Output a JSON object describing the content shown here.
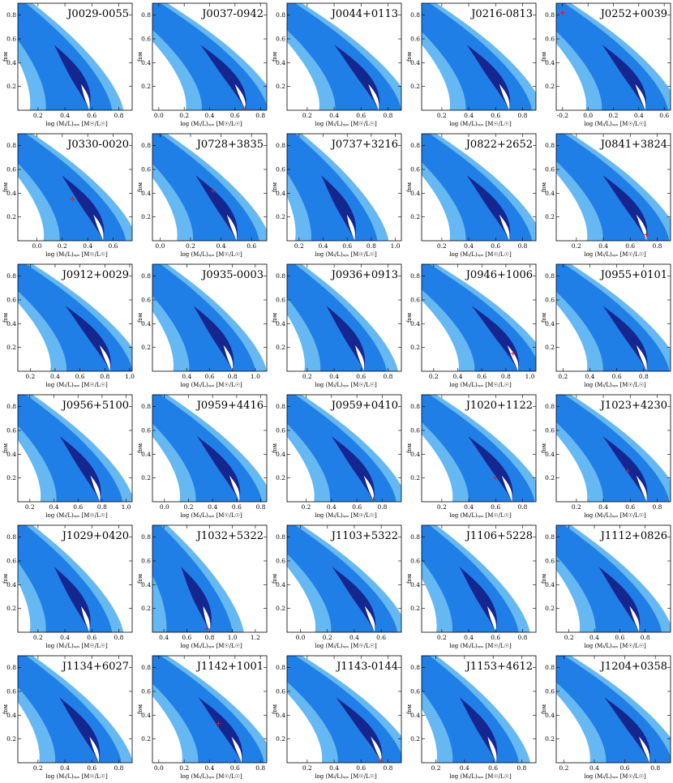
{
  "figure": {
    "xlabel": "log (Mₗ/L)ₛₚₛ  [M☉/L☉]",
    "ylabel": "fᴅᴍ",
    "colors": {
      "band_outer": "#66b8f2",
      "band_mid": "#1f7fe6",
      "band_inner": "#16268f",
      "core": "#ffffff",
      "marker": "#cc2222",
      "frame": "#000000"
    }
  },
  "chart_data": [
    {
      "title": "J0029-0055",
      "type": "contour",
      "xlim": [
        0.05,
        0.9
      ],
      "ylim": [
        0,
        0.9
      ],
      "xticks": [
        "0.2",
        "0.4",
        "0.6",
        "0.8"
      ],
      "yticks": [
        "0.2",
        "0.4",
        "0.6",
        "0.8"
      ],
      "x0": 0.58,
      "x_mark": null,
      "y_mark": null
    },
    {
      "title": "J0037-0942",
      "type": "contour",
      "xlim": [
        -0.05,
        0.85
      ],
      "ylim": [
        0,
        0.9
      ],
      "xticks": [
        "0.0",
        "0.2",
        "0.4",
        "0.6",
        "0.8"
      ],
      "yticks": [
        "0.2",
        "0.4",
        "0.6",
        "0.8"
      ],
      "x0": 0.68,
      "x_mark": 0.68,
      "y_mark": 0.02
    },
    {
      "title": "J0044+0113",
      "type": "contour",
      "xlim": [
        0.05,
        0.9
      ],
      "ylim": [
        0,
        0.9
      ],
      "xticks": [
        "0.2",
        "0.4",
        "0.6",
        "0.8"
      ],
      "yticks": [
        "0.2",
        "0.4",
        "0.6",
        "0.8"
      ],
      "x0": 0.73,
      "x_mark": null,
      "y_mark": null
    },
    {
      "title": "J0216-0813",
      "type": "contour",
      "xlim": [
        0.05,
        0.9
      ],
      "ylim": [
        0,
        0.9
      ],
      "xticks": [
        "0.2",
        "0.4",
        "0.6",
        "0.8"
      ],
      "yticks": [
        "0.2",
        "0.4",
        "0.6",
        "0.8"
      ],
      "x0": 0.7,
      "x_mark": null,
      "y_mark": null
    },
    {
      "title": "J0252+0039",
      "type": "contour",
      "xlim": [
        -0.25,
        0.65
      ],
      "ylim": [
        0,
        0.9
      ],
      "xticks": [
        "-0.2",
        "0.0",
        "0.2",
        "0.4",
        "0.6"
      ],
      "yticks": [
        "0.2",
        "0.4",
        "0.6",
        "0.8"
      ],
      "x0": 0.45,
      "x_mark": -0.2,
      "y_mark": 0.82
    },
    {
      "title": "J0330-0020",
      "type": "contour",
      "xlim": [
        -0.15,
        0.75
      ],
      "ylim": [
        0,
        0.9
      ],
      "xticks": [
        "0.0",
        "0.2",
        "0.4",
        "0.6"
      ],
      "yticks": [
        "0.2",
        "0.4",
        "0.6",
        "0.8"
      ],
      "x0": 0.52,
      "x_mark": 0.28,
      "y_mark": 0.35
    },
    {
      "title": "J0728+3835",
      "type": "contour",
      "xlim": [
        -0.05,
        0.7
      ],
      "ylim": [
        0,
        0.9
      ],
      "xticks": [
        "0.0",
        "0.2",
        "0.4",
        "0.6"
      ],
      "yticks": [
        "0.2",
        "0.4",
        "0.6",
        "0.8"
      ],
      "x0": 0.5,
      "x_mark": 0.35,
      "y_mark": 0.42
    },
    {
      "title": "J0737+3216",
      "type": "contour",
      "xlim": [
        0.1,
        1.05
      ],
      "ylim": [
        0,
        0.9
      ],
      "xticks": [
        "0.2",
        "0.4",
        "0.6",
        "0.8",
        "1.0"
      ],
      "yticks": [
        "0.2",
        "0.4",
        "0.6",
        "0.8"
      ],
      "x0": 0.66,
      "x_mark": null,
      "y_mark": null
    },
    {
      "title": "J0822+2652",
      "type": "contour",
      "xlim": [
        0.05,
        0.9
      ],
      "ylim": [
        0,
        0.9
      ],
      "xticks": [
        "0.2",
        "0.4",
        "0.6",
        "0.8"
      ],
      "yticks": [
        "0.2",
        "0.4",
        "0.6",
        "0.8"
      ],
      "x0": 0.7,
      "x_mark": null,
      "y_mark": null
    },
    {
      "title": "J0841+3824",
      "type": "contour",
      "xlim": [
        0.05,
        0.9
      ],
      "ylim": [
        0,
        0.9
      ],
      "xticks": [
        "0.2",
        "0.4",
        "0.6",
        "0.8"
      ],
      "yticks": [
        "0.2",
        "0.4",
        "0.6",
        "0.8"
      ],
      "x0": 0.72,
      "x_mark": 0.72,
      "y_mark": 0.05
    },
    {
      "title": "J0912+0029",
      "type": "contour",
      "xlim": [
        0.1,
        1.02
      ],
      "ylim": [
        0,
        0.9
      ],
      "xticks": [
        "0.2",
        "0.4",
        "0.6",
        "0.8",
        "1.0"
      ],
      "yticks": [
        "0.2",
        "0.4",
        "0.6",
        "0.8"
      ],
      "x0": 0.84,
      "x_mark": null,
      "y_mark": null
    },
    {
      "title": "J0935-0003",
      "type": "contour",
      "xlim": [
        0.1,
        1.1
      ],
      "ylim": [
        0,
        0.9
      ],
      "xticks": [
        "0.4",
        "0.6",
        "0.8",
        "1.0"
      ],
      "yticks": [
        "0.2",
        "0.4",
        "0.6",
        "0.8"
      ],
      "x0": 0.8,
      "x_mark": null,
      "y_mark": null
    },
    {
      "title": "J0936+0913",
      "type": "contour",
      "xlim": [
        0.05,
        0.9
      ],
      "ylim": [
        0,
        0.9
      ],
      "xticks": [
        "0.2",
        "0.4",
        "0.6",
        "0.8"
      ],
      "yticks": [
        "0.2",
        "0.4",
        "0.6",
        "0.8"
      ],
      "x0": 0.62,
      "x_mark": null,
      "y_mark": null
    },
    {
      "title": "J0946+1006",
      "type": "contour",
      "xlim": [
        0.1,
        1.05
      ],
      "ylim": [
        0,
        0.9
      ],
      "xticks": [
        "0.2",
        "0.4",
        "0.6",
        "0.8",
        "1.0"
      ],
      "yticks": [
        "0.2",
        "0.4",
        "0.6",
        "0.8"
      ],
      "x0": 0.9,
      "x_mark": 0.86,
      "y_mark": 0.15
    },
    {
      "title": "J0955+0101",
      "type": "contour",
      "xlim": [
        0.15,
        1.0
      ],
      "ylim": [
        0,
        0.9
      ],
      "xticks": [
        "0.2",
        "0.4",
        "0.6",
        "0.8"
      ],
      "yticks": [
        "0.2",
        "0.4",
        "0.6",
        "0.8"
      ],
      "x0": 0.82,
      "x_mark": null,
      "y_mark": null
    },
    {
      "title": "J0956+5100",
      "type": "contour",
      "xlim": [
        0.1,
        1.05
      ],
      "ylim": [
        0,
        0.9
      ],
      "xticks": [
        "0.2",
        "0.4",
        "0.6",
        "0.8",
        "1.0"
      ],
      "yticks": [
        "0.2",
        "0.4",
        "0.6",
        "0.8"
      ],
      "x0": 0.78,
      "x_mark": null,
      "y_mark": null
    },
    {
      "title": "J0959+4416",
      "type": "contour",
      "xlim": [
        -0.1,
        0.85
      ],
      "ylim": [
        0,
        0.9
      ],
      "xticks": [
        "0.0",
        "0.2",
        "0.4",
        "0.6",
        "0.8"
      ],
      "yticks": [
        "0.2",
        "0.4",
        "0.6",
        "0.8"
      ],
      "x0": 0.62,
      "x_mark": null,
      "y_mark": null
    },
    {
      "title": "J0959+0410",
      "type": "contour",
      "xlim": [
        0.05,
        0.95
      ],
      "ylim": [
        0,
        0.9
      ],
      "xticks": [
        "0.2",
        "0.4",
        "0.6",
        "0.8"
      ],
      "yticks": [
        "0.2",
        "0.4",
        "0.6",
        "0.8"
      ],
      "x0": 0.73,
      "x_mark": 0.73,
      "y_mark": 0.02
    },
    {
      "title": "J1020+1122",
      "type": "contour",
      "xlim": [
        0.05,
        0.9
      ],
      "ylim": [
        0,
        0.9
      ],
      "xticks": [
        "0.2",
        "0.4",
        "0.6",
        "0.8"
      ],
      "yticks": [
        "0.2",
        "0.4",
        "0.6",
        "0.8"
      ],
      "x0": 0.72,
      "x_mark": 0.6,
      "y_mark": 0.2
    },
    {
      "title": "J1023+4230",
      "type": "contour",
      "xlim": [
        0.05,
        0.9
      ],
      "ylim": [
        0,
        0.9
      ],
      "xticks": [
        "0.2",
        "0.4",
        "0.6",
        "0.8"
      ],
      "yticks": [
        "0.2",
        "0.4",
        "0.6",
        "0.8"
      ],
      "x0": 0.72,
      "x_mark": 0.58,
      "y_mark": 0.26
    },
    {
      "title": "J1029+0420",
      "type": "contour",
      "xlim": [
        0.05,
        0.9
      ],
      "ylim": [
        0,
        0.9
      ],
      "xticks": [
        "0.2",
        "0.4",
        "0.6",
        "0.8"
      ],
      "yticks": [
        "0.2",
        "0.4",
        "0.6",
        "0.8"
      ],
      "x0": 0.58,
      "x_mark": null,
      "y_mark": null
    },
    {
      "title": "J1032+5322",
      "type": "contour",
      "xlim": [
        0.3,
        1.3
      ],
      "ylim": [
        0,
        0.9
      ],
      "xticks": [
        "0.4",
        "0.6",
        "0.8",
        "1.0",
        "1.2"
      ],
      "yticks": [
        "0.2",
        "0.4",
        "0.6",
        "0.8"
      ],
      "x0": 0.8,
      "x_mark": 0.78,
      "y_mark": 0.03
    },
    {
      "title": "J1103+5322",
      "type": "contour",
      "xlim": [
        -0.1,
        0.75
      ],
      "ylim": [
        0,
        0.9
      ],
      "xticks": [
        "0.0",
        "0.2",
        "0.4",
        "0.6"
      ],
      "yticks": [
        "0.2",
        "0.4",
        "0.6",
        "0.8"
      ],
      "x0": 0.55,
      "x_mark": null,
      "y_mark": null
    },
    {
      "title": "J1106+5228",
      "type": "contour",
      "xlim": [
        0.05,
        0.9
      ],
      "ylim": [
        0,
        0.9
      ],
      "xticks": [
        "0.2",
        "0.4",
        "0.6",
        "0.8"
      ],
      "yticks": [
        "0.2",
        "0.4",
        "0.6",
        "0.8"
      ],
      "x0": 0.6,
      "x_mark": null,
      "y_mark": null
    },
    {
      "title": "J1112+0826",
      "type": "contour",
      "xlim": [
        0.1,
        1.0
      ],
      "ylim": [
        0,
        0.9
      ],
      "xticks": [
        "0.2",
        "0.4",
        "0.6",
        "0.8"
      ],
      "yticks": [
        "0.2",
        "0.4",
        "0.6",
        "0.8"
      ],
      "x0": 0.75,
      "x_mark": null,
      "y_mark": null
    },
    {
      "title": "J1134+6027",
      "type": "contour",
      "xlim": [
        0.05,
        0.9
      ],
      "ylim": [
        0,
        0.9
      ],
      "xticks": [
        "0.2",
        "0.4",
        "0.6",
        "0.8"
      ],
      "yticks": [
        "0.2",
        "0.4",
        "0.6",
        "0.8"
      ],
      "x0": 0.65,
      "x_mark": null,
      "y_mark": null
    },
    {
      "title": "J1142+1001",
      "type": "contour",
      "xlim": [
        -0.05,
        0.85
      ],
      "ylim": [
        0,
        0.9
      ],
      "xticks": [
        "0.0",
        "0.2",
        "0.4",
        "0.6",
        "0.8"
      ],
      "yticks": [
        "0.2",
        "0.4",
        "0.6",
        "0.8"
      ],
      "x0": 0.65,
      "x_mark": 0.47,
      "y_mark": 0.33
    },
    {
      "title": "J1143-0144",
      "type": "contour",
      "xlim": [
        0.05,
        0.9
      ],
      "ylim": [
        0,
        0.9
      ],
      "xticks": [
        "0.2",
        "0.4",
        "0.6",
        "0.8"
      ],
      "yticks": [
        "0.2",
        "0.4",
        "0.6",
        "0.8"
      ],
      "x0": 0.75,
      "x_mark": 0.75,
      "y_mark": 0.02
    },
    {
      "title": "J1153+4612",
      "type": "contour",
      "xlim": [
        0.1,
        0.9
      ],
      "ylim": [
        0,
        0.9
      ],
      "xticks": [
        "0.2",
        "0.4",
        "0.6",
        "0.8"
      ],
      "yticks": [
        "0.2",
        "0.4",
        "0.6",
        "0.8"
      ],
      "x0": 0.62,
      "x_mark": null,
      "y_mark": null
    },
    {
      "title": "J1204+0358",
      "type": "contour",
      "xlim": [
        0.15,
        0.9
      ],
      "ylim": [
        0,
        0.9
      ],
      "xticks": [
        "0.2",
        "0.4",
        "0.6",
        "0.8"
      ],
      "yticks": [
        "0.2",
        "0.4",
        "0.6",
        "0.8"
      ],
      "x0": 0.76,
      "x_mark": null,
      "y_mark": null
    }
  ]
}
